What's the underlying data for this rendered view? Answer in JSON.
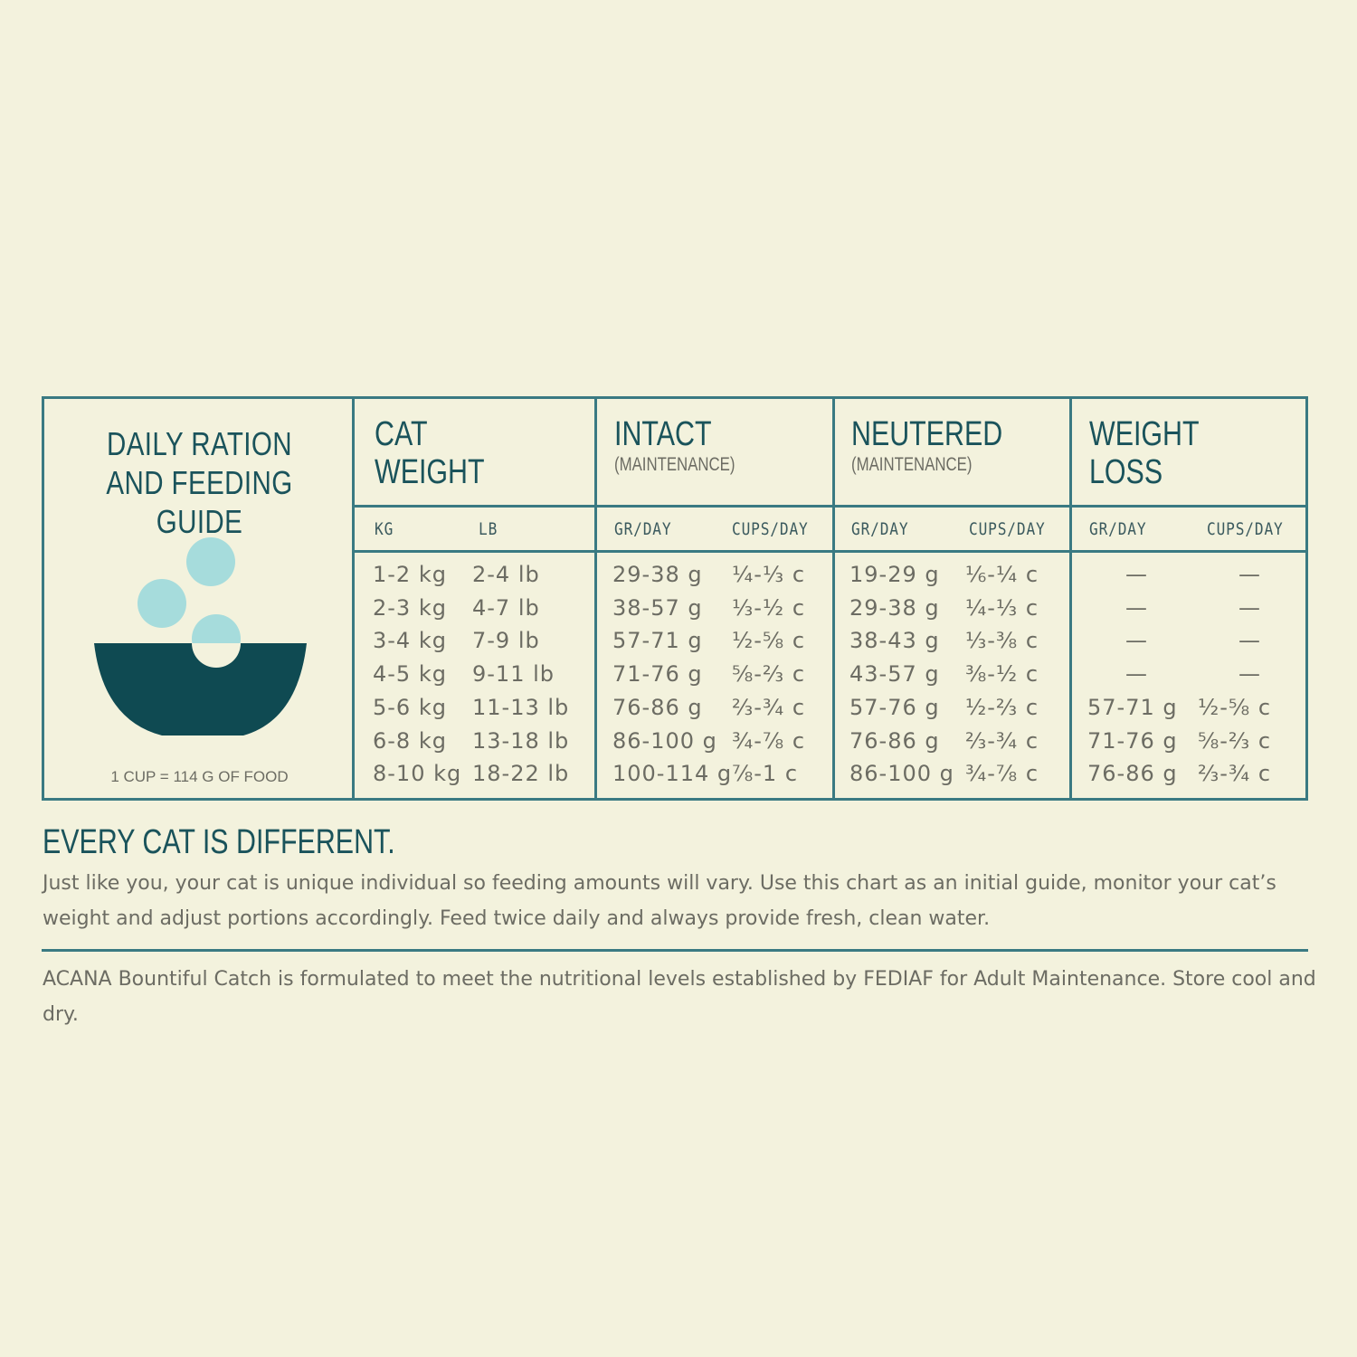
{
  "guide": {
    "title_line1": "DAILY RATION",
    "title_line2": "AND FEEDING GUIDE",
    "cup_note": "1 CUP = 114 G OF FOOD",
    "colors": {
      "border": "#3a7a82",
      "heading": "#1a535b",
      "bowl": "#0f4a52",
      "kibble": "#a6dcdc",
      "background": "#f3f2dd"
    },
    "icon": "bowl-with-kibble-icon"
  },
  "table": {
    "groups": [
      {
        "title": [
          "CAT",
          "WEIGHT"
        ],
        "subtitle": "",
        "sub": [
          "KG",
          "LB"
        ]
      },
      {
        "title": [
          "INTACT"
        ],
        "subtitle": "(MAINTENANCE)",
        "sub": [
          "GR/DAY",
          "CUPS/DAY"
        ]
      },
      {
        "title": [
          "NEUTERED"
        ],
        "subtitle": "(MAINTENANCE)",
        "sub": [
          "GR/DAY",
          "CUPS/DAY"
        ]
      },
      {
        "title": [
          "WEIGHT",
          "LOSS"
        ],
        "subtitle": "",
        "sub": [
          "GR/DAY",
          "CUPS/DAY"
        ]
      }
    ],
    "rows": [
      [
        "1-2 kg",
        "2-4 lb",
        "29-38 g",
        "¼-⅓ c",
        "19-29 g",
        "⅙-¼ c",
        "—",
        "—"
      ],
      [
        "2-3 kg",
        "4-7 lb",
        "38-57 g",
        "⅓-½ c",
        "29-38 g",
        "¼-⅓ c",
        "—",
        "—"
      ],
      [
        "3-4 kg",
        "7-9 lb",
        "57-71 g",
        "½-⅝ c",
        "38-43 g",
        "⅓-⅜ c",
        "—",
        "—"
      ],
      [
        "4-5 kg",
        "9-11 lb",
        "71-76 g",
        "⅝-⅔ c",
        "43-57 g",
        "⅜-½ c",
        "—",
        "—"
      ],
      [
        "5-6 kg",
        "11-13 lb",
        "76-86 g",
        "⅔-¾ c",
        "57-76 g",
        "½-⅔ c",
        "57-71 g",
        "½-⅝ c"
      ],
      [
        "6-8 kg",
        "13-18 lb",
        "86-100 g",
        "¾-⅞ c",
        "76-86 g",
        "⅔-¾ c",
        "71-76 g",
        "⅝-⅔ c"
      ],
      [
        "8-10 kg",
        "18-22 lb",
        "100-114 g",
        "⅞-1 c",
        "86-100 g",
        "¾-⅞ c",
        "76-86 g",
        "⅔-¾ c"
      ]
    ]
  },
  "notes": {
    "heading": "EVERY CAT IS DIFFERENT.",
    "body": "Just like you, your cat is unique individual so feeding amounts will vary. Use this chart as an initial guide, monitor your cat’s weight and adjust portions accordingly. Feed twice daily and always provide fresh, clean water.",
    "footer": "ACANA Bountiful Catch is formulated to meet the nutritional levels established by FEDIAF for Adult Maintenance. Store cool and dry."
  }
}
